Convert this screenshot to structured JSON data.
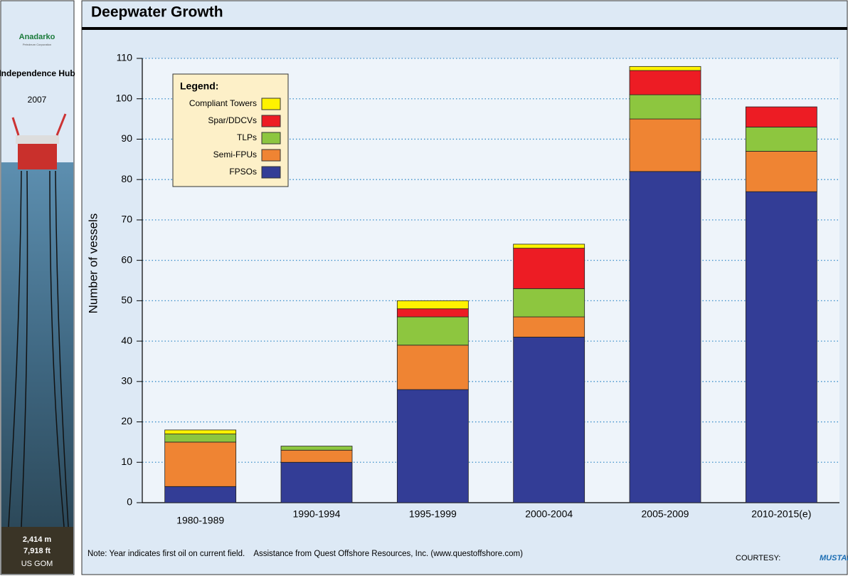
{
  "sidebar": {
    "logo": "Anadarko",
    "logo_sub": "Petroleum Corporation",
    "project": "Independence Hub",
    "year": "2007",
    "depth_m": "2,414 m",
    "depth_ft": "7,918 ft",
    "region": "US GOM"
  },
  "chart_data": {
    "type": "stacked_bar",
    "title": "Deepwater Growth",
    "y_label": "Number of vessels",
    "categories": [
      "1980-1989",
      "1990-1994",
      "1995-1999",
      "2000-2004",
      "2005-2009",
      "2010-2015(e)"
    ],
    "series": [
      {
        "name": "FPSOs",
        "color": "#333d96",
        "values": [
          4,
          10,
          28,
          41,
          82,
          77
        ]
      },
      {
        "name": "Semi-FPUs",
        "color": "#ef8433",
        "values": [
          11,
          3,
          11,
          5,
          13,
          10
        ]
      },
      {
        "name": "TLPs",
        "color": "#8dc63f",
        "values": [
          2,
          1,
          7,
          7,
          6,
          6
        ]
      },
      {
        "name": "Spar/DDCVs",
        "color": "#ed1c24",
        "values": [
          0,
          0,
          2,
          10,
          6,
          5
        ]
      },
      {
        "name": "Compliant Towers",
        "color": "#fff200",
        "values": [
          1,
          0,
          2,
          1,
          1,
          0
        ]
      }
    ],
    "ylim": [
      0,
      110
    ],
    "yticks": [
      0,
      10,
      20,
      30,
      40,
      50,
      60,
      70,
      80,
      90,
      100,
      110
    ],
    "grid": true,
    "legend_title": "Legend:",
    "legend_position": "upper left",
    "note": "Note: Year indicates first oil on current field.    Assistance from Quest Offshore Resources, Inc. (www.questoffshore.com)",
    "courtesy": "COURTESY:",
    "courtesy_logo": "MUSTANG"
  }
}
